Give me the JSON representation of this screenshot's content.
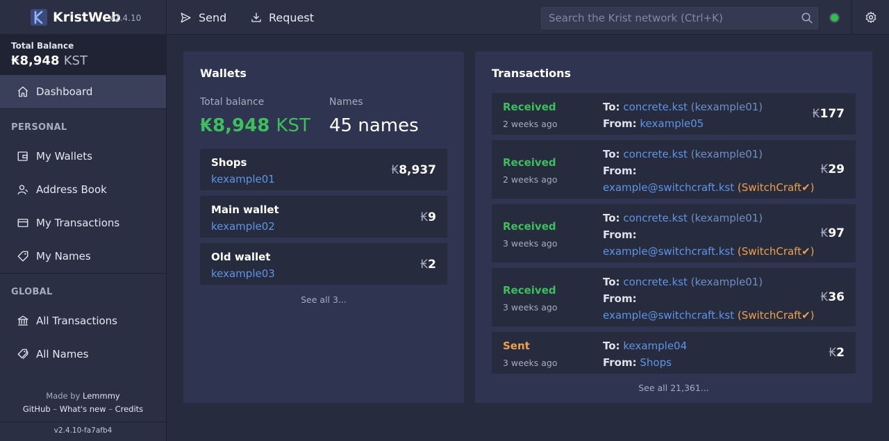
{
  "brand": {
    "name": "KristWeb",
    "version": "v2.4.10"
  },
  "topbar": {
    "send_label": "Send",
    "request_label": "Request",
    "search_placeholder": "Search the Krist network (Ctrl+K)"
  },
  "sidebar": {
    "total_label": "Total Balance",
    "total_amount": "8,948",
    "total_unit": "KST",
    "dashboard_label": "Dashboard",
    "personal_heading": "PERSONAL",
    "personal_items": [
      "My Wallets",
      "Address Book",
      "My Transactions",
      "My Names"
    ],
    "global_heading": "GLOBAL",
    "global_items": [
      "All Transactions",
      "All Names"
    ],
    "made_by_prefix": "Made by",
    "made_by_name": "Lemmmy",
    "links": [
      "GitHub",
      "What's new",
      "Credits"
    ],
    "build_version": "v2.4.10-fa7afb4"
  },
  "wallets": {
    "title": "Wallets",
    "total_balance_label": "Total balance",
    "total_balance_amount": "8,948",
    "total_balance_unit": "KST",
    "names_label": "Names",
    "names_value": "45 names",
    "rows": [
      {
        "name": "Shops",
        "address": "kexample01",
        "balance": "8,937"
      },
      {
        "name": "Main wallet",
        "address": "kexample02",
        "balance": "9"
      },
      {
        "name": "Old wallet",
        "address": "kexample03",
        "balance": "2"
      }
    ],
    "see_all": "See all 3..."
  },
  "transactions": {
    "title": "Transactions",
    "to_label": "To:",
    "from_label": "From:",
    "rows": [
      {
        "type": "Received",
        "time": "2 weeks ago",
        "to": "concrete.kst",
        "to_paren": "kexample01",
        "from": "kexample05",
        "from_meta": "",
        "amount": "177"
      },
      {
        "type": "Received",
        "time": "2 weeks ago",
        "to": "concrete.kst",
        "to_paren": "kexample01",
        "from": "example@switchcraft.kst",
        "from_meta": "SwitchCraft",
        "amount": "29"
      },
      {
        "type": "Received",
        "time": "3 weeks ago",
        "to": "concrete.kst",
        "to_paren": "kexample01",
        "from": "example@switchcraft.kst",
        "from_meta": "SwitchCraft",
        "amount": "97"
      },
      {
        "type": "Received",
        "time": "3 weeks ago",
        "to": "concrete.kst",
        "to_paren": "kexample01",
        "from": "example@switchcraft.kst",
        "from_meta": "SwitchCraft",
        "amount": "36"
      },
      {
        "type": "Sent",
        "time": "3 weeks ago",
        "to": "kexample04",
        "to_paren": "",
        "from": "Shops",
        "from_meta": "",
        "amount": "2"
      }
    ],
    "see_all": "See all 21,361..."
  },
  "colors": {
    "accent": "#5f95e6",
    "received": "#3cbf5c",
    "sent": "#f0a14a",
    "online": "#2fbf4a"
  }
}
